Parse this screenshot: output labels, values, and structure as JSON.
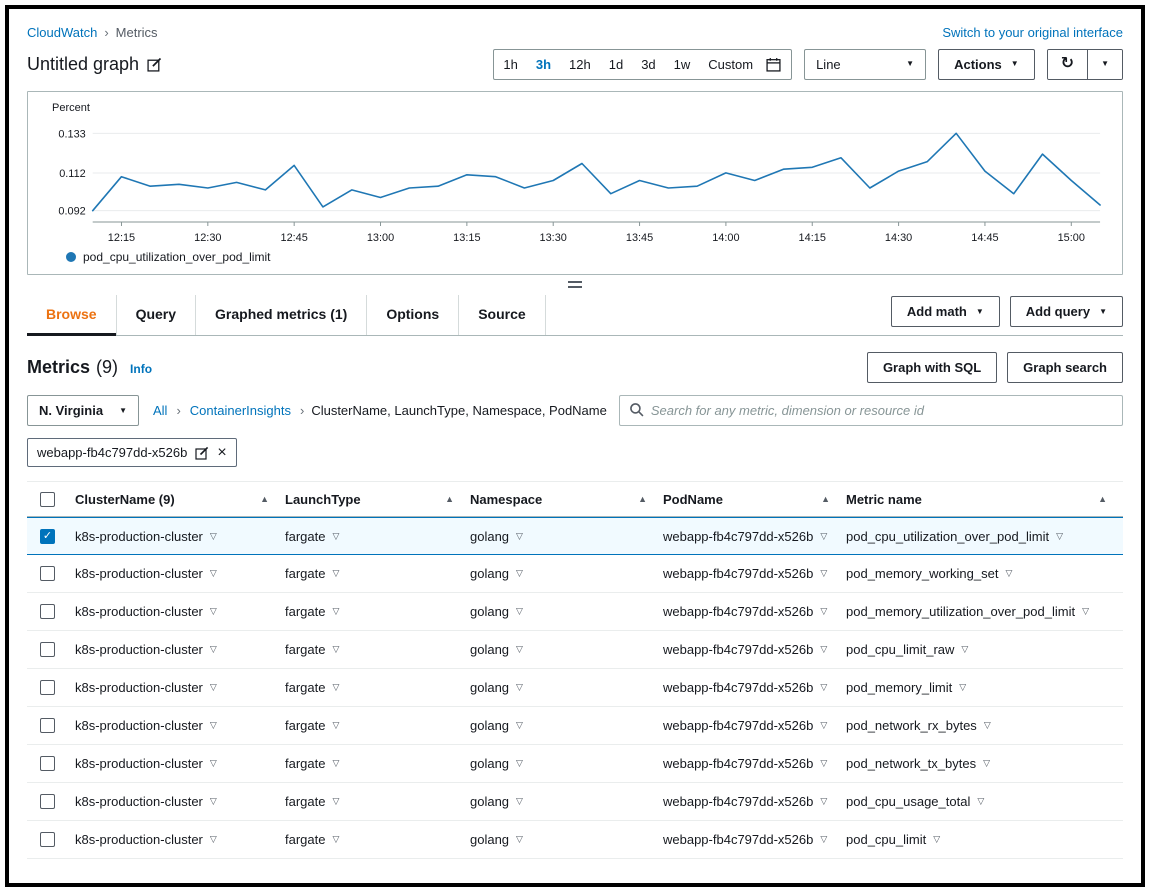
{
  "icons": {
    "caret_down": "▼",
    "cell_dropdown": "▽",
    "sort_asc": "▲",
    "check": "✓",
    "refresh": "↻",
    "close": "×",
    "chevron": "›"
  },
  "breadcrumb": {
    "items": [
      "CloudWatch",
      "Metrics"
    ]
  },
  "header": {
    "switch_link": "Switch to your original interface",
    "title": "Untitled graph",
    "time_ranges": [
      "1h",
      "3h",
      "12h",
      "1d",
      "3d",
      "1w",
      "Custom"
    ],
    "active_time_range": "3h",
    "chart_type": "Line",
    "actions_label": "Actions"
  },
  "chart_data": {
    "type": "line",
    "title": "",
    "ylabel": "Percent",
    "yticks": [
      0.092,
      0.112,
      0.133
    ],
    "ylim": [
      0.086,
      0.139
    ],
    "xticks": [
      "12:15",
      "12:30",
      "12:45",
      "13:00",
      "13:15",
      "13:30",
      "13:45",
      "14:00",
      "14:15",
      "14:30",
      "14:45",
      "15:00"
    ],
    "grid": true,
    "legend_position": "bottom-left",
    "series": [
      {
        "name": "pod_cpu_utilization_over_pod_limit",
        "color": "#1f77b4",
        "x": [
          "12:10",
          "12:15",
          "12:20",
          "12:25",
          "12:30",
          "12:35",
          "12:40",
          "12:45",
          "12:50",
          "12:55",
          "13:00",
          "13:05",
          "13:10",
          "13:15",
          "13:20",
          "13:25",
          "13:30",
          "13:35",
          "13:40",
          "13:45",
          "13:50",
          "13:55",
          "14:00",
          "14:05",
          "14:10",
          "14:15",
          "14:20",
          "14:25",
          "14:30",
          "14:35",
          "14:40",
          "14:45",
          "14:50",
          "14:55",
          "15:00",
          "15:05"
        ],
        "values": [
          0.092,
          0.11,
          0.105,
          0.106,
          0.104,
          0.107,
          0.103,
          0.116,
          0.094,
          0.103,
          0.099,
          0.104,
          0.105,
          0.111,
          0.11,
          0.104,
          0.108,
          0.117,
          0.101,
          0.108,
          0.104,
          0.105,
          0.112,
          0.108,
          0.114,
          0.115,
          0.12,
          0.104,
          0.113,
          0.118,
          0.133,
          0.113,
          0.101,
          0.122,
          0.108,
          0.095
        ]
      }
    ]
  },
  "tabs": {
    "items": [
      "Browse",
      "Query",
      "Graphed metrics (1)",
      "Options",
      "Source"
    ],
    "active": "Browse",
    "add_math_label": "Add math",
    "add_query_label": "Add query"
  },
  "metrics_panel": {
    "title": "Metrics",
    "count": "(9)",
    "info_label": "Info",
    "graph_sql_label": "Graph with SQL",
    "graph_search_label": "Graph search",
    "region": "N. Virginia",
    "path": [
      "All",
      "ContainerInsights"
    ],
    "dimensions": "ClusterName, LaunchType, Namespace, PodName",
    "search_placeholder": "Search for any metric, dimension or resource id",
    "filter_tag": "webapp-fb4c797dd-x526b"
  },
  "table": {
    "columns": [
      "ClusterName (9)",
      "LaunchType",
      "Namespace",
      "PodName",
      "Metric name"
    ],
    "rows": [
      {
        "cluster": "k8s-production-cluster",
        "launch_type": "fargate",
        "namespace": "golang",
        "pod": "webapp-fb4c797dd-x526b",
        "metric": "pod_cpu_utilization_over_pod_limit",
        "checked": true
      },
      {
        "cluster": "k8s-production-cluster",
        "launch_type": "fargate",
        "namespace": "golang",
        "pod": "webapp-fb4c797dd-x526b",
        "metric": "pod_memory_working_set",
        "checked": false
      },
      {
        "cluster": "k8s-production-cluster",
        "launch_type": "fargate",
        "namespace": "golang",
        "pod": "webapp-fb4c797dd-x526b",
        "metric": "pod_memory_utilization_over_pod_limit",
        "checked": false
      },
      {
        "cluster": "k8s-production-cluster",
        "launch_type": "fargate",
        "namespace": "golang",
        "pod": "webapp-fb4c797dd-x526b",
        "metric": "pod_cpu_limit_raw",
        "checked": false
      },
      {
        "cluster": "k8s-production-cluster",
        "launch_type": "fargate",
        "namespace": "golang",
        "pod": "webapp-fb4c797dd-x526b",
        "metric": "pod_memory_limit",
        "checked": false
      },
      {
        "cluster": "k8s-production-cluster",
        "launch_type": "fargate",
        "namespace": "golang",
        "pod": "webapp-fb4c797dd-x526b",
        "metric": "pod_network_rx_bytes",
        "checked": false
      },
      {
        "cluster": "k8s-production-cluster",
        "launch_type": "fargate",
        "namespace": "golang",
        "pod": "webapp-fb4c797dd-x526b",
        "metric": "pod_network_tx_bytes",
        "checked": false
      },
      {
        "cluster": "k8s-production-cluster",
        "launch_type": "fargate",
        "namespace": "golang",
        "pod": "webapp-fb4c797dd-x526b",
        "metric": "pod_cpu_usage_total",
        "checked": false
      },
      {
        "cluster": "k8s-production-cluster",
        "launch_type": "fargate",
        "namespace": "golang",
        "pod": "webapp-fb4c797dd-x526b",
        "metric": "pod_cpu_limit",
        "checked": false
      }
    ]
  }
}
